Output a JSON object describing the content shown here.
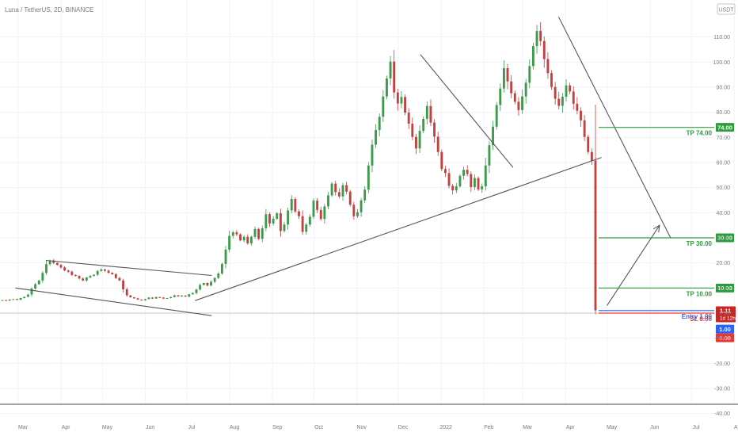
{
  "header": {
    "symbol": "Luna / TetherUS, 2D, BINANCE",
    "currency_badge": "USDT"
  },
  "colors": {
    "up": "#26a69a",
    "down": "#ef5350",
    "candle_up": "#3c9a4b",
    "candle_down": "#c2403f",
    "tp": "#2e9b3c",
    "entry": "#2962ff",
    "sl": "#e53935",
    "trendline": "#555555",
    "last_price_badge": "#c62828"
  },
  "chart_data": {
    "type": "candlestick",
    "title": "",
    "xlabel": "",
    "ylabel": "",
    "ylim": [
      -40,
      120
    ],
    "y_ticks": [
      110,
      100,
      90,
      80,
      70,
      60,
      50,
      40,
      30,
      20,
      10,
      0,
      -10,
      -20,
      -30,
      -40
    ],
    "y_tick_labels": [
      "110.00",
      "100.00",
      "90.00",
      "80.00",
      "70.00",
      "60.00",
      "50.00",
      "40.00",
      "30.00",
      "20.00",
      "10.00",
      "0.00",
      "-10.00",
      "-20.00",
      "-30.00",
      "-40.00"
    ],
    "x_ticks": [
      "Mar",
      "Apr",
      "May",
      "Jun",
      "Jul",
      "Aug",
      "Sep",
      "Oct",
      "Nov",
      "Dec",
      "2022",
      "Feb",
      "Mar",
      "Apr",
      "May",
      "Jun",
      "Jul",
      "Aug"
    ],
    "x_tick_positions": [
      0,
      31,
      61,
      92,
      122,
      153,
      184,
      214,
      245,
      275,
      306,
      337,
      365,
      396,
      426,
      457,
      487,
      518
    ],
    "x_range": [
      -23,
      537
    ],
    "candles_close": [
      5.2,
      5.0,
      5.4,
      5.6,
      5.3,
      6.0,
      6.5,
      7.4,
      9.8,
      11.5,
      13.0,
      16.0,
      19.5,
      21.0,
      20.0,
      19.2,
      18.2,
      17.0,
      16.5,
      15.2,
      14.8,
      13.8,
      13.0,
      14.2,
      14.8,
      15.3,
      16.8,
      17.4,
      16.9,
      16.1,
      15.5,
      14.0,
      13.0,
      9.5,
      7.1,
      6.3,
      5.9,
      5.4,
      5.1,
      5.6,
      6.2,
      5.8,
      6.4,
      6.2,
      5.8,
      6.0,
      6.4,
      7.1,
      6.7,
      7.0,
      6.6,
      7.5,
      8.0,
      9.4,
      11.2,
      12.0,
      11.0,
      12.5,
      14.0,
      15.8,
      19.6,
      25.3,
      30.8,
      32.2,
      31.4,
      29.0,
      30.4,
      27.8,
      30.4,
      33.5,
      29.6,
      33.8,
      39.4,
      35.7,
      37.6,
      39.8,
      32.7,
      35.3,
      40.9,
      45.5,
      40.5,
      38.6,
      32.4,
      35.3,
      38.4,
      44.8,
      41.1,
      37.5,
      42.5,
      46.9,
      51.6,
      48.2,
      46.5,
      51.0,
      48.4,
      43.2,
      38.6,
      40.2,
      44.9,
      49.2,
      58.8,
      67.1,
      72.9,
      78.2,
      86.3,
      93.5,
      100.2,
      87.9,
      83.5,
      86.1,
      79.9,
      75.5,
      70.2,
      65.6,
      72.6,
      77.4,
      82.5,
      75.9,
      70.3,
      64.2,
      57.4,
      55.8,
      50.7,
      48.9,
      50.5,
      54.7,
      57.1,
      55.4,
      50.2,
      53.8,
      49.3,
      50.5,
      58.8,
      66.9,
      74.3,
      82.9,
      89.5,
      97.6,
      92.3,
      87.6,
      84.2,
      80.9,
      86.3,
      91.8,
      98.4,
      106.4,
      112.4,
      108.4,
      101.2,
      95.6,
      90.1,
      85.4,
      82.6,
      86.2,
      90.7,
      88.3,
      83.4,
      80.6,
      76.8,
      70.2,
      64.2,
      60.8,
      1.1
    ],
    "levels": [
      {
        "name": "TP 74.00",
        "value": 74.0,
        "axis_label": "74.00"
      },
      {
        "name": "TP 30.00",
        "value": 30.0,
        "axis_label": "30.00"
      },
      {
        "name": "TP 10.00",
        "value": 10.0,
        "axis_label": "10.00"
      },
      {
        "name": "Entry 1.00",
        "value": 1.0,
        "axis_label": "1.00"
      },
      {
        "name": "SL 0.00",
        "value": 0.0,
        "axis_label": "0.00"
      }
    ],
    "last_price": {
      "value": "1.11",
      "countdown": "1d 12h"
    },
    "annotations": [
      {
        "kind": "trendline",
        "from": [
          20,
          21
        ],
        "to": [
          140,
          15
        ]
      },
      {
        "kind": "trendline",
        "from": [
          -2,
          10
        ],
        "to": [
          140,
          -1
        ]
      },
      {
        "kind": "trendline",
        "from": [
          128,
          5
        ],
        "to": [
          422,
          62
        ]
      },
      {
        "kind": "trendline",
        "from": [
          291,
          103
        ],
        "to": [
          358,
          58
        ]
      },
      {
        "kind": "trendline",
        "from": [
          391,
          118
        ],
        "to": [
          472,
          30
        ]
      },
      {
        "kind": "arrow",
        "from": [
          426,
          3
        ],
        "to": [
          464,
          35
        ]
      }
    ]
  }
}
